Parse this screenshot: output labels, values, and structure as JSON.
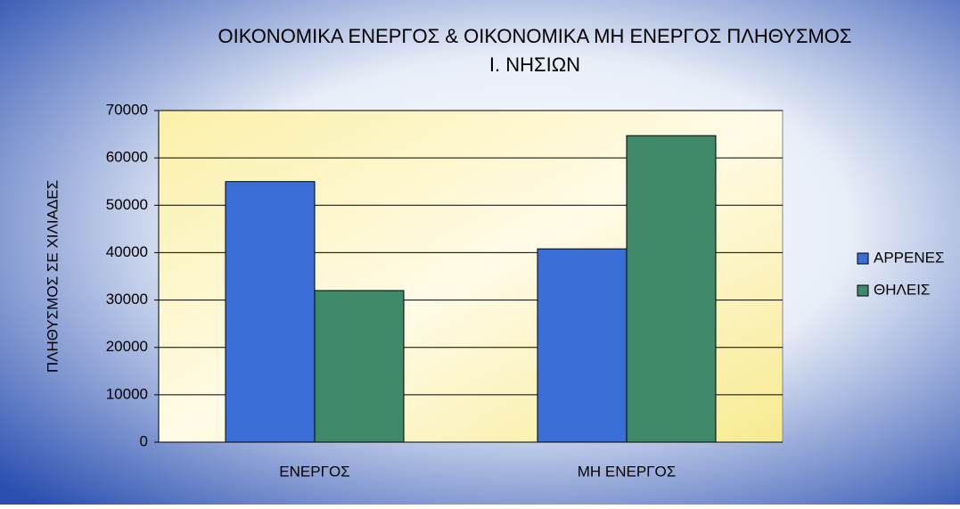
{
  "chart_data": {
    "type": "bar",
    "title": [
      "ΟΙΚΟΝΟΜΙΚΑ ΕΝΕΡΓΟΣ & ΟΙΚΟΝΟΜΙΚΑ ΜΗ ΕΝΕΡΓΟΣ ΠΛΗΘΥΣΜΟΣ",
      "Ι. ΝΗΣΙΩΝ"
    ],
    "y_label": "ΠΛΗΘΥΣΜΟΣ ΣΕ ΧΙΛΙΑΔΕΣ",
    "categories": [
      "ΕΝΕΡΓΟΣ",
      "ΜΗ ΕΝΕΡΓΟΣ"
    ],
    "series": [
      {
        "name": "ΑΡΡΕΝΕΣ",
        "color": "#3b6fd8",
        "values": [
          55000,
          40800
        ]
      },
      {
        "name": "ΘΗΛΕΙΣ",
        "color": "#3e8a68",
        "values": [
          32000,
          64700
        ]
      }
    ],
    "ylim": [
      0,
      70000
    ],
    "yticks": [
      0,
      10000,
      20000,
      30000,
      40000,
      50000,
      60000,
      70000
    ],
    "grid": true,
    "legend": "right"
  }
}
